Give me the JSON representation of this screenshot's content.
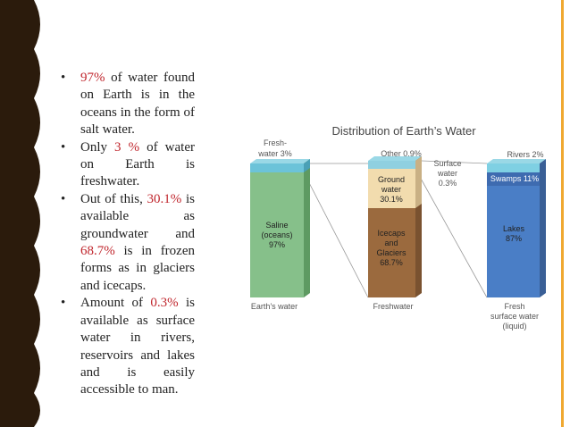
{
  "bullets": [
    [
      {
        "text": "97%",
        "color": "#c0262d"
      },
      {
        "text": " of water found on Earth is in the oceans in the form of salt water."
      }
    ],
    [
      {
        "text": "Only "
      },
      {
        "text": "3 %",
        "color": "#c0262d"
      },
      {
        "text": " of water on Earth is freshwater."
      }
    ],
    [
      {
        "text": "Out of this, "
      },
      {
        "text": "30.1%",
        "color": "#c0262d"
      },
      {
        "text": " is available as groundwater and "
      },
      {
        "text": "68.7%",
        "color": "#c0262d"
      },
      {
        "text": " is in frozen forms as in glaciers and icecaps."
      }
    ],
    [
      {
        "text": "Amount of "
      },
      {
        "text": "0.3%",
        "color": "#c0262d"
      },
      {
        "text": " is available as surface water in rivers, reservoirs and lakes and is easily accessible to man."
      }
    ]
  ],
  "diagram": {
    "title": "Distribution of Earth’s Water",
    "earth": {
      "caption": "Earth’s water",
      "fresh": [
        "Fresh-",
        "water 3%"
      ],
      "saline": [
        "Saline",
        "(oceans)",
        "97%"
      ]
    },
    "freshwater": {
      "caption": "Freshwater",
      "other": "Other 0.9%",
      "surface": [
        "Surface",
        "water",
        "0.3%"
      ],
      "ground": [
        "Ground",
        "water",
        "30.1%"
      ],
      "ice": [
        "Icecaps",
        "and",
        "Glaciers",
        "68.7%"
      ]
    },
    "surface": {
      "caption": [
        "Fresh",
        "surface water",
        "(liquid)"
      ],
      "rivers": "Rivers 2%",
      "swamps": "Swamps 11%",
      "lakes": [
        "Lakes",
        "87%"
      ]
    }
  }
}
